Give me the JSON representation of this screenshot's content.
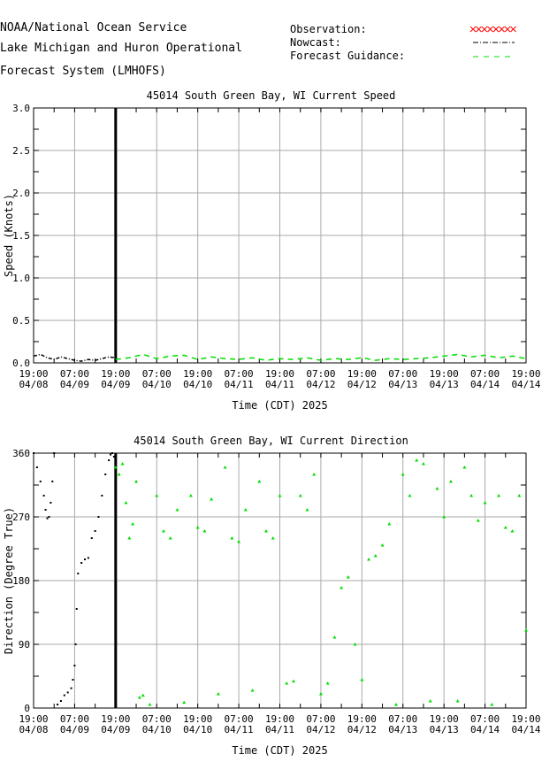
{
  "header": {
    "line1": "NOAA/National Ocean Service",
    "line2": "Lake Michigan and Huron Operational",
    "line3": "Forecast System (LMHOFS)"
  },
  "legend": {
    "observation": "Observation:",
    "nowcast": "Nowcast:",
    "forecast": "Forecast Guidance:",
    "colors": {
      "observation": "#ff0000",
      "nowcast": "#000000",
      "forecast": "#00dd00"
    }
  },
  "chart_data": [
    {
      "type": "line",
      "title": "45014   South Green Bay, WI Current Speed",
      "xlabel": "Time (CDT) 2025",
      "ylabel": "Speed (Knots)",
      "ylim": [
        0,
        3.0
      ],
      "yticks": [
        "0.0",
        "0.5",
        "1.0",
        "1.5",
        "2.0",
        "2.5",
        "3.0"
      ],
      "xticks": [
        [
          "19:00",
          "04/08"
        ],
        [
          "07:00",
          "04/09"
        ],
        [
          "19:00",
          "04/09"
        ],
        [
          "07:00",
          "04/10"
        ],
        [
          "19:00",
          "04/10"
        ],
        [
          "07:00",
          "04/11"
        ],
        [
          "19:00",
          "04/11"
        ],
        [
          "07:00",
          "04/12"
        ],
        [
          "19:00",
          "04/12"
        ],
        [
          "07:00",
          "04/13"
        ],
        [
          "19:00",
          "04/13"
        ],
        [
          "07:00",
          "04/14"
        ],
        [
          "19:00",
          "04/14"
        ]
      ],
      "grid": true,
      "now_line": "19:00 04/09",
      "series": [
        {
          "name": "Nowcast",
          "t": [
            0,
            2,
            4,
            6,
            8,
            10,
            12,
            14,
            16,
            18,
            20,
            22,
            24
          ],
          "values": [
            0.08,
            0.1,
            0.06,
            0.04,
            0.07,
            0.05,
            0.03,
            0.02,
            0.04,
            0.03,
            0.05,
            0.07,
            0.06
          ]
        },
        {
          "name": "Forecast Guidance",
          "t": [
            24,
            28,
            32,
            36,
            40,
            44,
            48,
            52,
            56,
            60,
            64,
            68,
            72,
            76,
            80,
            84,
            88,
            92,
            96,
            100,
            104,
            108,
            112,
            116,
            120,
            124,
            128,
            132,
            136,
            140,
            144
          ],
          "values": [
            0.04,
            0.06,
            0.1,
            0.05,
            0.08,
            0.09,
            0.04,
            0.07,
            0.05,
            0.04,
            0.06,
            0.03,
            0.05,
            0.04,
            0.06,
            0.03,
            0.05,
            0.04,
            0.06,
            0.03,
            0.05,
            0.04,
            0.05,
            0.06,
            0.08,
            0.1,
            0.07,
            0.09,
            0.06,
            0.08,
            0.05
          ]
        }
      ]
    },
    {
      "type": "scatter",
      "title": "45014   South Green Bay, WI Current Direction",
      "xlabel": "Time (CDT) 2025",
      "ylabel": "Direction (Degree True)",
      "ylim": [
        0,
        360
      ],
      "yticks": [
        "0",
        "90",
        "180",
        "270",
        "360"
      ],
      "xticks": [
        [
          "19:00",
          "04/08"
        ],
        [
          "07:00",
          "04/09"
        ],
        [
          "19:00",
          "04/09"
        ],
        [
          "07:00",
          "04/10"
        ],
        [
          "19:00",
          "04/10"
        ],
        [
          "07:00",
          "04/11"
        ],
        [
          "19:00",
          "04/11"
        ],
        [
          "07:00",
          "04/12"
        ],
        [
          "19:00",
          "04/12"
        ],
        [
          "07:00",
          "04/13"
        ],
        [
          "19:00",
          "04/13"
        ],
        [
          "07:00",
          "04/14"
        ],
        [
          "19:00",
          "04/14"
        ]
      ],
      "grid": true,
      "now_line": "19:00 04/09",
      "series": [
        {
          "name": "Nowcast",
          "t": [
            0,
            1,
            2,
            3,
            3.5,
            4,
            4.5,
            5,
            5.5,
            6,
            7,
            8,
            9,
            10,
            11,
            11.5,
            12,
            12.3,
            12.6,
            13,
            14,
            15,
            16,
            17,
            18,
            19,
            20,
            21,
            22,
            22.5,
            23,
            23.5,
            24
          ],
          "values": [
            360,
            340,
            320,
            300,
            280,
            268,
            270,
            290,
            320,
            360,
            5,
            10,
            18,
            22,
            28,
            40,
            60,
            90,
            140,
            190,
            205,
            210,
            212,
            240,
            250,
            270,
            300,
            330,
            350,
            358,
            360,
            355,
            358
          ]
        },
        {
          "name": "Forecast Guidance",
          "t": [
            24,
            25,
            26,
            27,
            28,
            29,
            30,
            31,
            32,
            34,
            36,
            38,
            40,
            42,
            44,
            46,
            48,
            50,
            52,
            54,
            56,
            58,
            60,
            62,
            64,
            66,
            68,
            70,
            72,
            74,
            76,
            78,
            80,
            82,
            84,
            86,
            88,
            90,
            92,
            94,
            96,
            98,
            100,
            102,
            104,
            106,
            108,
            110,
            112,
            114,
            116,
            118,
            120,
            122,
            124,
            126,
            128,
            130,
            132,
            134,
            136,
            138,
            140,
            142,
            144
          ],
          "values": [
            340,
            330,
            345,
            290,
            240,
            260,
            320,
            15,
            18,
            5,
            300,
            250,
            240,
            280,
            8,
            300,
            255,
            250,
            295,
            20,
            340,
            240,
            235,
            280,
            25,
            320,
            250,
            240,
            300,
            35,
            38,
            300,
            280,
            330,
            20,
            35,
            100,
            170,
            185,
            90,
            40,
            210,
            215,
            230,
            260,
            5,
            330,
            300,
            350,
            345,
            10,
            310,
            270,
            320,
            10,
            340,
            300,
            265,
            290,
            5,
            300,
            255,
            250,
            300,
            110
          ]
        }
      ]
    }
  ]
}
